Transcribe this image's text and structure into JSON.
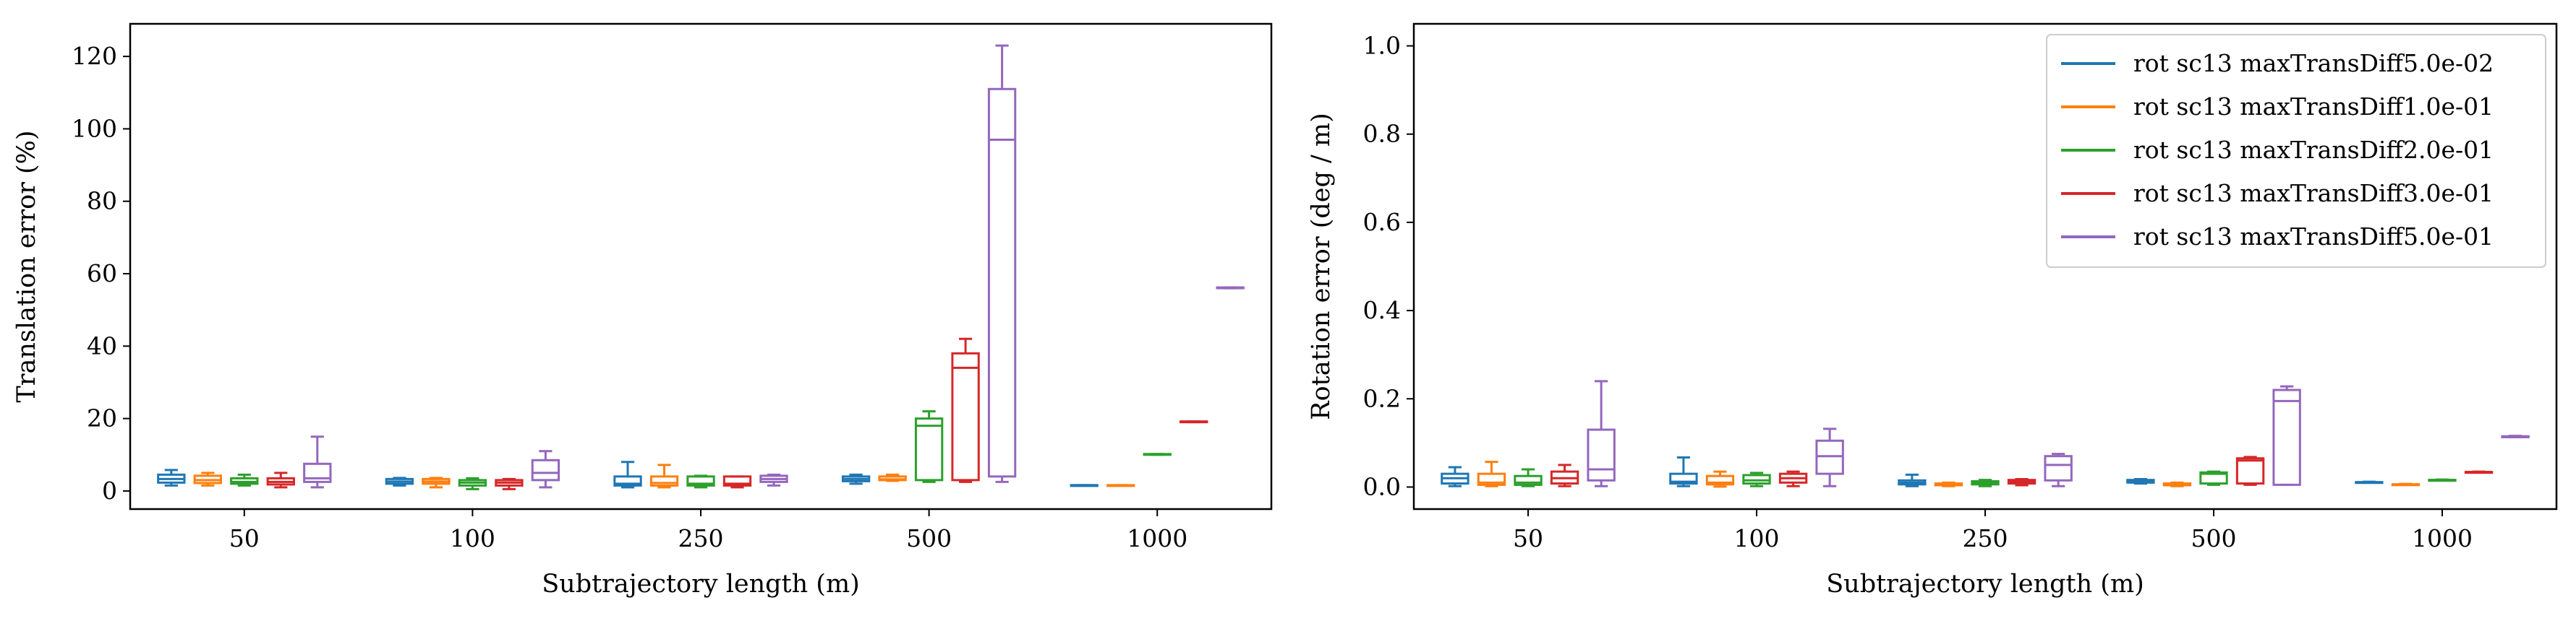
{
  "chart_data": [
    {
      "type": "box",
      "title": "",
      "xlabel": "Subtrajectory length (m)",
      "ylabel": "Translation error (%)",
      "categories": [
        "50",
        "100",
        "250",
        "500",
        "1000"
      ],
      "ylim": [
        -5,
        129
      ],
      "yticks": [
        0,
        20,
        40,
        60,
        80,
        100,
        120
      ],
      "ytick_labels": [
        "0",
        "20",
        "40",
        "60",
        "80",
        "100",
        "120"
      ],
      "grid": false,
      "legend": "none",
      "series": [
        {
          "key": "s1",
          "color": "#1f77b4",
          "boxes": [
            {
              "whislo": 1.5,
              "q1": 2.3,
              "med": 3.3,
              "q3": 4.5,
              "whishi": 5.8
            },
            {
              "whislo": 1.5,
              "q1": 2.0,
              "med": 2.6,
              "q3": 3.3,
              "whishi": 3.6
            },
            {
              "whislo": 1.0,
              "q1": 1.5,
              "med": 2.0,
              "q3": 4.0,
              "whishi": 8.0
            },
            {
              "whislo": 2.0,
              "q1": 2.7,
              "med": 3.3,
              "q3": 4.0,
              "whishi": 4.5
            },
            {
              "whislo": 1.5,
              "q1": 1.5,
              "med": 1.6,
              "q3": 1.6,
              "whishi": 1.6
            }
          ]
        },
        {
          "key": "s2",
          "color": "#ff7f0e",
          "boxes": [
            {
              "whislo": 1.5,
              "q1": 2.2,
              "med": 3.0,
              "q3": 4.2,
              "whishi": 5.0
            },
            {
              "whislo": 1.0,
              "q1": 2.0,
              "med": 2.6,
              "q3": 3.3,
              "whishi": 3.6
            },
            {
              "whislo": 1.0,
              "q1": 1.5,
              "med": 2.2,
              "q3": 4.0,
              "whishi": 7.2
            },
            {
              "whislo": 2.8,
              "q1": 3.0,
              "med": 3.2,
              "q3": 4.0,
              "whishi": 4.5
            },
            {
              "whislo": 1.5,
              "q1": 1.5,
              "med": 1.5,
              "q3": 1.6,
              "whishi": 1.6
            }
          ]
        },
        {
          "key": "s3",
          "color": "#2ca02c",
          "boxes": [
            {
              "whislo": 1.5,
              "q1": 2.0,
              "med": 2.5,
              "q3": 3.5,
              "whishi": 4.5
            },
            {
              "whislo": 0.5,
              "q1": 1.5,
              "med": 2.3,
              "q3": 3.0,
              "whishi": 3.5
            },
            {
              "whislo": 1.0,
              "q1": 1.5,
              "med": 2.0,
              "q3": 4.0,
              "whishi": 4.2
            },
            {
              "whislo": 2.5,
              "q1": 3.0,
              "med": 18.0,
              "q3": 20.0,
              "whishi": 22.0
            },
            {
              "whislo": 10.0,
              "q1": 10.0,
              "med": 10.1,
              "q3": 10.2,
              "whishi": 10.2
            }
          ]
        },
        {
          "key": "s4",
          "color": "#d62728",
          "boxes": [
            {
              "whislo": 1.0,
              "q1": 1.8,
              "med": 2.5,
              "q3": 3.5,
              "whishi": 5.0
            },
            {
              "whislo": 0.5,
              "q1": 1.5,
              "med": 2.3,
              "q3": 3.0,
              "whishi": 3.3
            },
            {
              "whislo": 1.0,
              "q1": 1.5,
              "med": 2.0,
              "q3": 4.0,
              "whishi": 4.0
            },
            {
              "whislo": 2.5,
              "q1": 3.0,
              "med": 34.0,
              "q3": 38.0,
              "whishi": 42.0
            },
            {
              "whislo": 19.0,
              "q1": 19.0,
              "med": 19.1,
              "q3": 19.2,
              "whishi": 19.2
            }
          ]
        },
        {
          "key": "s5",
          "color": "#9467bd",
          "boxes": [
            {
              "whislo": 1.0,
              "q1": 2.5,
              "med": 3.5,
              "q3": 7.5,
              "whishi": 15.0
            },
            {
              "whislo": 1.0,
              "q1": 3.0,
              "med": 5.0,
              "q3": 8.5,
              "whishi": 11.0
            },
            {
              "whislo": 1.5,
              "q1": 2.5,
              "med": 3.3,
              "q3": 4.2,
              "whishi": 4.5
            },
            {
              "whislo": 2.5,
              "q1": 4.0,
              "med": 97.0,
              "q3": 111.0,
              "whishi": 123.0
            },
            {
              "whislo": 56.0,
              "q1": 56.0,
              "med": 56.1,
              "q3": 56.2,
              "whishi": 56.2
            }
          ]
        }
      ]
    },
    {
      "type": "box",
      "title": "",
      "xlabel": "Subtrajectory length (m)",
      "ylabel": "Rotation error (deg / m)",
      "categories": [
        "50",
        "100",
        "250",
        "500",
        "1000"
      ],
      "ylim": [
        -0.05,
        1.05
      ],
      "yticks": [
        0.0,
        0.2,
        0.4,
        0.6,
        0.8,
        1.0
      ],
      "ytick_labels": [
        "0.0",
        "0.2",
        "0.4",
        "0.6",
        "0.8",
        "1.0"
      ],
      "grid": false,
      "legend": "top-right",
      "series": [
        {
          "key": "s1",
          "color": "#1f77b4",
          "boxes": [
            {
              "whislo": 0.002,
              "q1": 0.008,
              "med": 0.02,
              "q3": 0.03,
              "whishi": 0.045
            },
            {
              "whislo": 0.002,
              "q1": 0.008,
              "med": 0.012,
              "q3": 0.03,
              "whishi": 0.067
            },
            {
              "whislo": 0.002,
              "q1": 0.006,
              "med": 0.01,
              "q3": 0.015,
              "whishi": 0.028
            },
            {
              "whislo": 0.008,
              "q1": 0.01,
              "med": 0.013,
              "q3": 0.016,
              "whishi": 0.018
            },
            {
              "whislo": 0.01,
              "q1": 0.01,
              "med": 0.011,
              "q3": 0.011,
              "whishi": 0.012
            }
          ]
        },
        {
          "key": "s2",
          "color": "#ff7f0e",
          "boxes": [
            {
              "whislo": 0.002,
              "q1": 0.005,
              "med": 0.01,
              "q3": 0.03,
              "whishi": 0.057
            },
            {
              "whislo": 0.001,
              "q1": 0.006,
              "med": 0.01,
              "q3": 0.025,
              "whishi": 0.035
            },
            {
              "whislo": 0.002,
              "q1": 0.004,
              "med": 0.006,
              "q3": 0.008,
              "whishi": 0.01
            },
            {
              "whislo": 0.002,
              "q1": 0.004,
              "med": 0.006,
              "q3": 0.008,
              "whishi": 0.01
            },
            {
              "whislo": 0.005,
              "q1": 0.005,
              "med": 0.006,
              "q3": 0.006,
              "whishi": 0.007
            }
          ]
        },
        {
          "key": "s3",
          "color": "#2ca02c",
          "boxes": [
            {
              "whislo": 0.002,
              "q1": 0.005,
              "med": 0.01,
              "q3": 0.025,
              "whishi": 0.04
            },
            {
              "whislo": 0.002,
              "q1": 0.008,
              "med": 0.015,
              "q3": 0.027,
              "whishi": 0.032
            },
            {
              "whislo": 0.002,
              "q1": 0.006,
              "med": 0.01,
              "q3": 0.013,
              "whishi": 0.016
            },
            {
              "whislo": 0.005,
              "q1": 0.008,
              "med": 0.03,
              "q3": 0.033,
              "whishi": 0.035
            },
            {
              "whislo": 0.015,
              "q1": 0.015,
              "med": 0.016,
              "q3": 0.016,
              "whishi": 0.017
            }
          ]
        },
        {
          "key": "s4",
          "color": "#d62728",
          "boxes": [
            {
              "whislo": 0.002,
              "q1": 0.008,
              "med": 0.02,
              "q3": 0.035,
              "whishi": 0.05
            },
            {
              "whislo": 0.002,
              "q1": 0.01,
              "med": 0.02,
              "q3": 0.03,
              "whishi": 0.035
            },
            {
              "whislo": 0.004,
              "q1": 0.008,
              "med": 0.012,
              "q3": 0.016,
              "whishi": 0.018
            },
            {
              "whislo": 0.005,
              "q1": 0.008,
              "med": 0.06,
              "q3": 0.065,
              "whishi": 0.068
            },
            {
              "whislo": 0.033,
              "q1": 0.033,
              "med": 0.034,
              "q3": 0.034,
              "whishi": 0.035
            }
          ]
        },
        {
          "key": "s5",
          "color": "#9467bd",
          "boxes": [
            {
              "whislo": 0.002,
              "q1": 0.015,
              "med": 0.04,
              "q3": 0.13,
              "whishi": 0.24
            },
            {
              "whislo": 0.002,
              "q1": 0.03,
              "med": 0.07,
              "q3": 0.105,
              "whishi": 0.132
            },
            {
              "whislo": 0.002,
              "q1": 0.015,
              "med": 0.05,
              "q3": 0.07,
              "whishi": 0.075
            },
            {
              "whislo": 0.005,
              "q1": 0.005,
              "med": 0.195,
              "q3": 0.22,
              "whishi": 0.228
            },
            {
              "whislo": 0.113,
              "q1": 0.113,
              "med": 0.114,
              "q3": 0.115,
              "whishi": 0.116
            }
          ]
        }
      ]
    }
  ],
  "legend": {
    "entries": [
      {
        "key": "s1",
        "label": "rot sc13 maxTransDiff5.0e-02",
        "color": "#1f77b4"
      },
      {
        "key": "s2",
        "label": "rot sc13 maxTransDiff1.0e-01",
        "color": "#ff7f0e"
      },
      {
        "key": "s3",
        "label": "rot sc13 maxTransDiff2.0e-01",
        "color": "#2ca02c"
      },
      {
        "key": "s4",
        "label": "rot sc13 maxTransDiff3.0e-01",
        "color": "#d62728"
      },
      {
        "key": "s5",
        "label": "rot sc13 maxTransDiff5.0e-01",
        "color": "#9467bd"
      }
    ]
  }
}
